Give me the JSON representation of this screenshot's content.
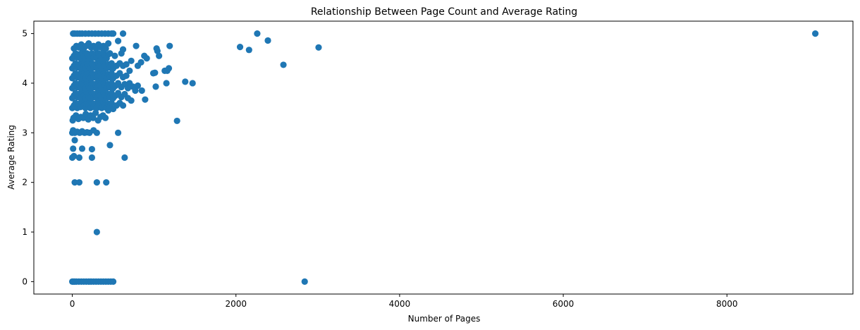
{
  "chart_data": {
    "type": "scatter",
    "title": "Relationship Between Page Count and Average Rating",
    "xlabel": "Number of Pages",
    "ylabel": "Average Rating",
    "xlim": [
      -470,
      9540
    ],
    "ylim": [
      -0.25,
      5.25
    ],
    "xticks": [
      0,
      2000,
      4000,
      6000,
      8000
    ],
    "yticks": [
      0,
      1,
      2,
      3,
      4,
      5
    ],
    "grid": false,
    "series": [
      {
        "color": "#1f77b4",
        "points": [
          [
            0,
            0
          ],
          [
            15,
            0
          ],
          [
            30,
            0
          ],
          [
            50,
            0
          ],
          [
            80,
            0
          ],
          [
            110,
            0
          ],
          [
            140,
            0
          ],
          [
            170,
            0
          ],
          [
            200,
            0
          ],
          [
            230,
            0
          ],
          [
            260,
            0
          ],
          [
            290,
            0
          ],
          [
            320,
            0
          ],
          [
            350,
            0
          ],
          [
            380,
            0
          ],
          [
            410,
            0
          ],
          [
            440,
            0
          ],
          [
            470,
            0
          ],
          [
            500,
            0
          ],
          [
            2840,
            0
          ],
          [
            300,
            1.0
          ],
          [
            30,
            2.0
          ],
          [
            85,
            2.0
          ],
          [
            300,
            2.0
          ],
          [
            415,
            2.0
          ],
          [
            0,
            2.5
          ],
          [
            20,
            2.53
          ],
          [
            85,
            2.5
          ],
          [
            240,
            2.5
          ],
          [
            640,
            2.5
          ],
          [
            10,
            2.68
          ],
          [
            120,
            2.68
          ],
          [
            240,
            2.67
          ],
          [
            30,
            2.85
          ],
          [
            460,
            2.75
          ],
          [
            0,
            3.0
          ],
          [
            10,
            3.05
          ],
          [
            30,
            3.0
          ],
          [
            60,
            3.02
          ],
          [
            90,
            3.0
          ],
          [
            120,
            3.03
          ],
          [
            150,
            3.0
          ],
          [
            180,
            3.01
          ],
          [
            210,
            3.0
          ],
          [
            260,
            3.05
          ],
          [
            300,
            3.0
          ],
          [
            560,
            3.0
          ],
          [
            1280,
            3.24
          ],
          [
            5,
            3.25
          ],
          [
            15,
            3.3
          ],
          [
            45,
            3.35
          ],
          [
            75,
            3.28
          ],
          [
            105,
            3.32
          ],
          [
            135,
            3.3
          ],
          [
            165,
            3.38
          ],
          [
            195,
            3.27
          ],
          [
            225,
            3.35
          ],
          [
            255,
            3.3
          ],
          [
            285,
            3.4
          ],
          [
            315,
            3.25
          ],
          [
            345,
            3.32
          ],
          [
            375,
            3.35
          ],
          [
            405,
            3.3
          ],
          [
            440,
            3.45
          ],
          [
            0,
            3.5
          ],
          [
            20,
            3.55
          ],
          [
            40,
            3.6
          ],
          [
            60,
            3.5
          ],
          [
            80,
            3.58
          ],
          [
            100,
            3.52
          ],
          [
            120,
            3.6
          ],
          [
            140,
            3.55
          ],
          [
            160,
            3.5
          ],
          [
            180,
            3.62
          ],
          [
            200,
            3.55
          ],
          [
            220,
            3.5
          ],
          [
            240,
            3.6
          ],
          [
            260,
            3.52
          ],
          [
            280,
            3.58
          ],
          [
            300,
            3.5
          ],
          [
            320,
            3.6
          ],
          [
            340,
            3.55
          ],
          [
            360,
            3.5
          ],
          [
            380,
            3.62
          ],
          [
            400,
            3.55
          ],
          [
            420,
            3.5
          ],
          [
            440,
            3.58
          ],
          [
            460,
            3.52
          ],
          [
            480,
            3.6
          ],
          [
            500,
            3.48
          ],
          [
            540,
            3.55
          ],
          [
            580,
            3.6
          ],
          [
            620,
            3.55
          ],
          [
            0,
            3.7
          ],
          [
            20,
            3.75
          ],
          [
            40,
            3.8
          ],
          [
            60,
            3.72
          ],
          [
            80,
            3.78
          ],
          [
            100,
            3.7
          ],
          [
            120,
            3.82
          ],
          [
            140,
            3.75
          ],
          [
            160,
            3.7
          ],
          [
            180,
            3.8
          ],
          [
            200,
            3.74
          ],
          [
            220,
            3.7
          ],
          [
            240,
            3.8
          ],
          [
            260,
            3.72
          ],
          [
            280,
            3.78
          ],
          [
            300,
            3.7
          ],
          [
            320,
            3.8
          ],
          [
            340,
            3.75
          ],
          [
            360,
            3.7
          ],
          [
            380,
            3.82
          ],
          [
            400,
            3.75
          ],
          [
            420,
            3.7
          ],
          [
            440,
            3.78
          ],
          [
            460,
            3.72
          ],
          [
            480,
            3.8
          ],
          [
            500,
            3.7
          ],
          [
            530,
            3.75
          ],
          [
            560,
            3.8
          ],
          [
            600,
            3.72
          ],
          [
            640,
            3.78
          ],
          [
            680,
            3.7
          ],
          [
            720,
            3.65
          ],
          [
            770,
            3.85
          ],
          [
            850,
            3.85
          ],
          [
            890,
            3.67
          ],
          [
            0,
            3.9
          ],
          [
            20,
            3.95
          ],
          [
            40,
            4.0
          ],
          [
            60,
            3.92
          ],
          [
            80,
            3.98
          ],
          [
            100,
            3.9
          ],
          [
            120,
            4.02
          ],
          [
            140,
            3.95
          ],
          [
            160,
            3.9
          ],
          [
            180,
            4.0
          ],
          [
            200,
            3.94
          ],
          [
            220,
            3.9
          ],
          [
            240,
            4.0
          ],
          [
            260,
            3.92
          ],
          [
            280,
            3.98
          ],
          [
            300,
            3.9
          ],
          [
            320,
            4.0
          ],
          [
            340,
            3.95
          ],
          [
            360,
            3.9
          ],
          [
            380,
            4.02
          ],
          [
            400,
            3.95
          ],
          [
            420,
            3.9
          ],
          [
            440,
            3.98
          ],
          [
            460,
            3.92
          ],
          [
            480,
            4.0
          ],
          [
            500,
            3.9
          ],
          [
            530,
            3.95
          ],
          [
            560,
            4.0
          ],
          [
            600,
            3.92
          ],
          [
            640,
            3.98
          ],
          [
            680,
            3.9
          ],
          [
            700,
            4.0
          ],
          [
            740,
            3.93
          ],
          [
            800,
            3.95
          ],
          [
            1020,
            3.93
          ],
          [
            1150,
            4.0
          ],
          [
            1380,
            4.03
          ],
          [
            1470,
            4.0
          ],
          [
            0,
            4.1
          ],
          [
            20,
            4.15
          ],
          [
            40,
            4.2
          ],
          [
            60,
            4.12
          ],
          [
            80,
            4.18
          ],
          [
            100,
            4.1
          ],
          [
            120,
            4.22
          ],
          [
            140,
            4.15
          ],
          [
            160,
            4.1
          ],
          [
            180,
            4.2
          ],
          [
            200,
            4.14
          ],
          [
            220,
            4.1
          ],
          [
            240,
            4.2
          ],
          [
            260,
            4.12
          ],
          [
            280,
            4.18
          ],
          [
            300,
            4.1
          ],
          [
            320,
            4.2
          ],
          [
            340,
            4.15
          ],
          [
            360,
            4.1
          ],
          [
            380,
            4.22
          ],
          [
            400,
            4.15
          ],
          [
            420,
            4.1
          ],
          [
            440,
            4.18
          ],
          [
            460,
            4.12
          ],
          [
            480,
            4.2
          ],
          [
            500,
            4.1
          ],
          [
            540,
            4.15
          ],
          [
            580,
            4.2
          ],
          [
            620,
            4.12
          ],
          [
            660,
            4.15
          ],
          [
            700,
            4.25
          ],
          [
            990,
            4.2
          ],
          [
            1010,
            4.21
          ],
          [
            1130,
            4.25
          ],
          [
            1160,
            4.25
          ],
          [
            0,
            4.3
          ],
          [
            20,
            4.35
          ],
          [
            40,
            4.4
          ],
          [
            60,
            4.32
          ],
          [
            80,
            4.38
          ],
          [
            100,
            4.3
          ],
          [
            120,
            4.42
          ],
          [
            140,
            4.35
          ],
          [
            160,
            4.3
          ],
          [
            180,
            4.4
          ],
          [
            200,
            4.34
          ],
          [
            220,
            4.3
          ],
          [
            240,
            4.4
          ],
          [
            260,
            4.32
          ],
          [
            280,
            4.38
          ],
          [
            300,
            4.3
          ],
          [
            320,
            4.4
          ],
          [
            340,
            4.35
          ],
          [
            360,
            4.3
          ],
          [
            380,
            4.42
          ],
          [
            400,
            4.35
          ],
          [
            420,
            4.3
          ],
          [
            440,
            4.38
          ],
          [
            460,
            4.32
          ],
          [
            480,
            4.4
          ],
          [
            500,
            4.3
          ],
          [
            540,
            4.35
          ],
          [
            580,
            4.4
          ],
          [
            620,
            4.35
          ],
          [
            660,
            4.38
          ],
          [
            720,
            4.45
          ],
          [
            800,
            4.35
          ],
          [
            840,
            4.42
          ],
          [
            910,
            4.5
          ],
          [
            1060,
            4.55
          ],
          [
            1180,
            4.3
          ],
          [
            2580,
            4.37
          ],
          [
            0,
            4.5
          ],
          [
            20,
            4.55
          ],
          [
            40,
            4.6
          ],
          [
            60,
            4.52
          ],
          [
            80,
            4.58
          ],
          [
            100,
            4.5
          ],
          [
            120,
            4.62
          ],
          [
            140,
            4.55
          ],
          [
            160,
            4.5
          ],
          [
            180,
            4.6
          ],
          [
            200,
            4.54
          ],
          [
            220,
            4.5
          ],
          [
            240,
            4.6
          ],
          [
            260,
            4.52
          ],
          [
            280,
            4.58
          ],
          [
            300,
            4.5
          ],
          [
            320,
            4.6
          ],
          [
            340,
            4.55
          ],
          [
            360,
            4.5
          ],
          [
            380,
            4.62
          ],
          [
            400,
            4.55
          ],
          [
            420,
            4.5
          ],
          [
            440,
            4.58
          ],
          [
            460,
            4.6
          ],
          [
            520,
            4.55
          ],
          [
            600,
            4.6
          ],
          [
            620,
            4.68
          ],
          [
            880,
            4.55
          ],
          [
            1030,
            4.7
          ],
          [
            1040,
            4.65
          ],
          [
            20,
            4.7
          ],
          [
            50,
            4.75
          ],
          [
            80,
            4.72
          ],
          [
            110,
            4.78
          ],
          [
            140,
            4.7
          ],
          [
            170,
            4.75
          ],
          [
            200,
            4.8
          ],
          [
            230,
            4.72
          ],
          [
            260,
            4.75
          ],
          [
            290,
            4.7
          ],
          [
            320,
            4.78
          ],
          [
            350,
            4.72
          ],
          [
            380,
            4.75
          ],
          [
            410,
            4.7
          ],
          [
            440,
            4.8
          ],
          [
            780,
            4.75
          ],
          [
            1190,
            4.75
          ],
          [
            2050,
            4.73
          ],
          [
            2160,
            4.67
          ],
          [
            2390,
            4.86
          ],
          [
            3010,
            4.72
          ],
          [
            560,
            4.85
          ],
          [
            10,
            5.0
          ],
          [
            30,
            5.0
          ],
          [
            60,
            5.0
          ],
          [
            90,
            5.0
          ],
          [
            120,
            5.0
          ],
          [
            160,
            5.0
          ],
          [
            200,
            5.0
          ],
          [
            240,
            5.0
          ],
          [
            280,
            5.0
          ],
          [
            320,
            5.0
          ],
          [
            360,
            5.0
          ],
          [
            400,
            5.0
          ],
          [
            440,
            5.0
          ],
          [
            480,
            5.0
          ],
          [
            500,
            5.0
          ],
          [
            620,
            5.0
          ],
          [
            2260,
            5.0
          ],
          [
            9080,
            5.0
          ]
        ]
      }
    ]
  }
}
